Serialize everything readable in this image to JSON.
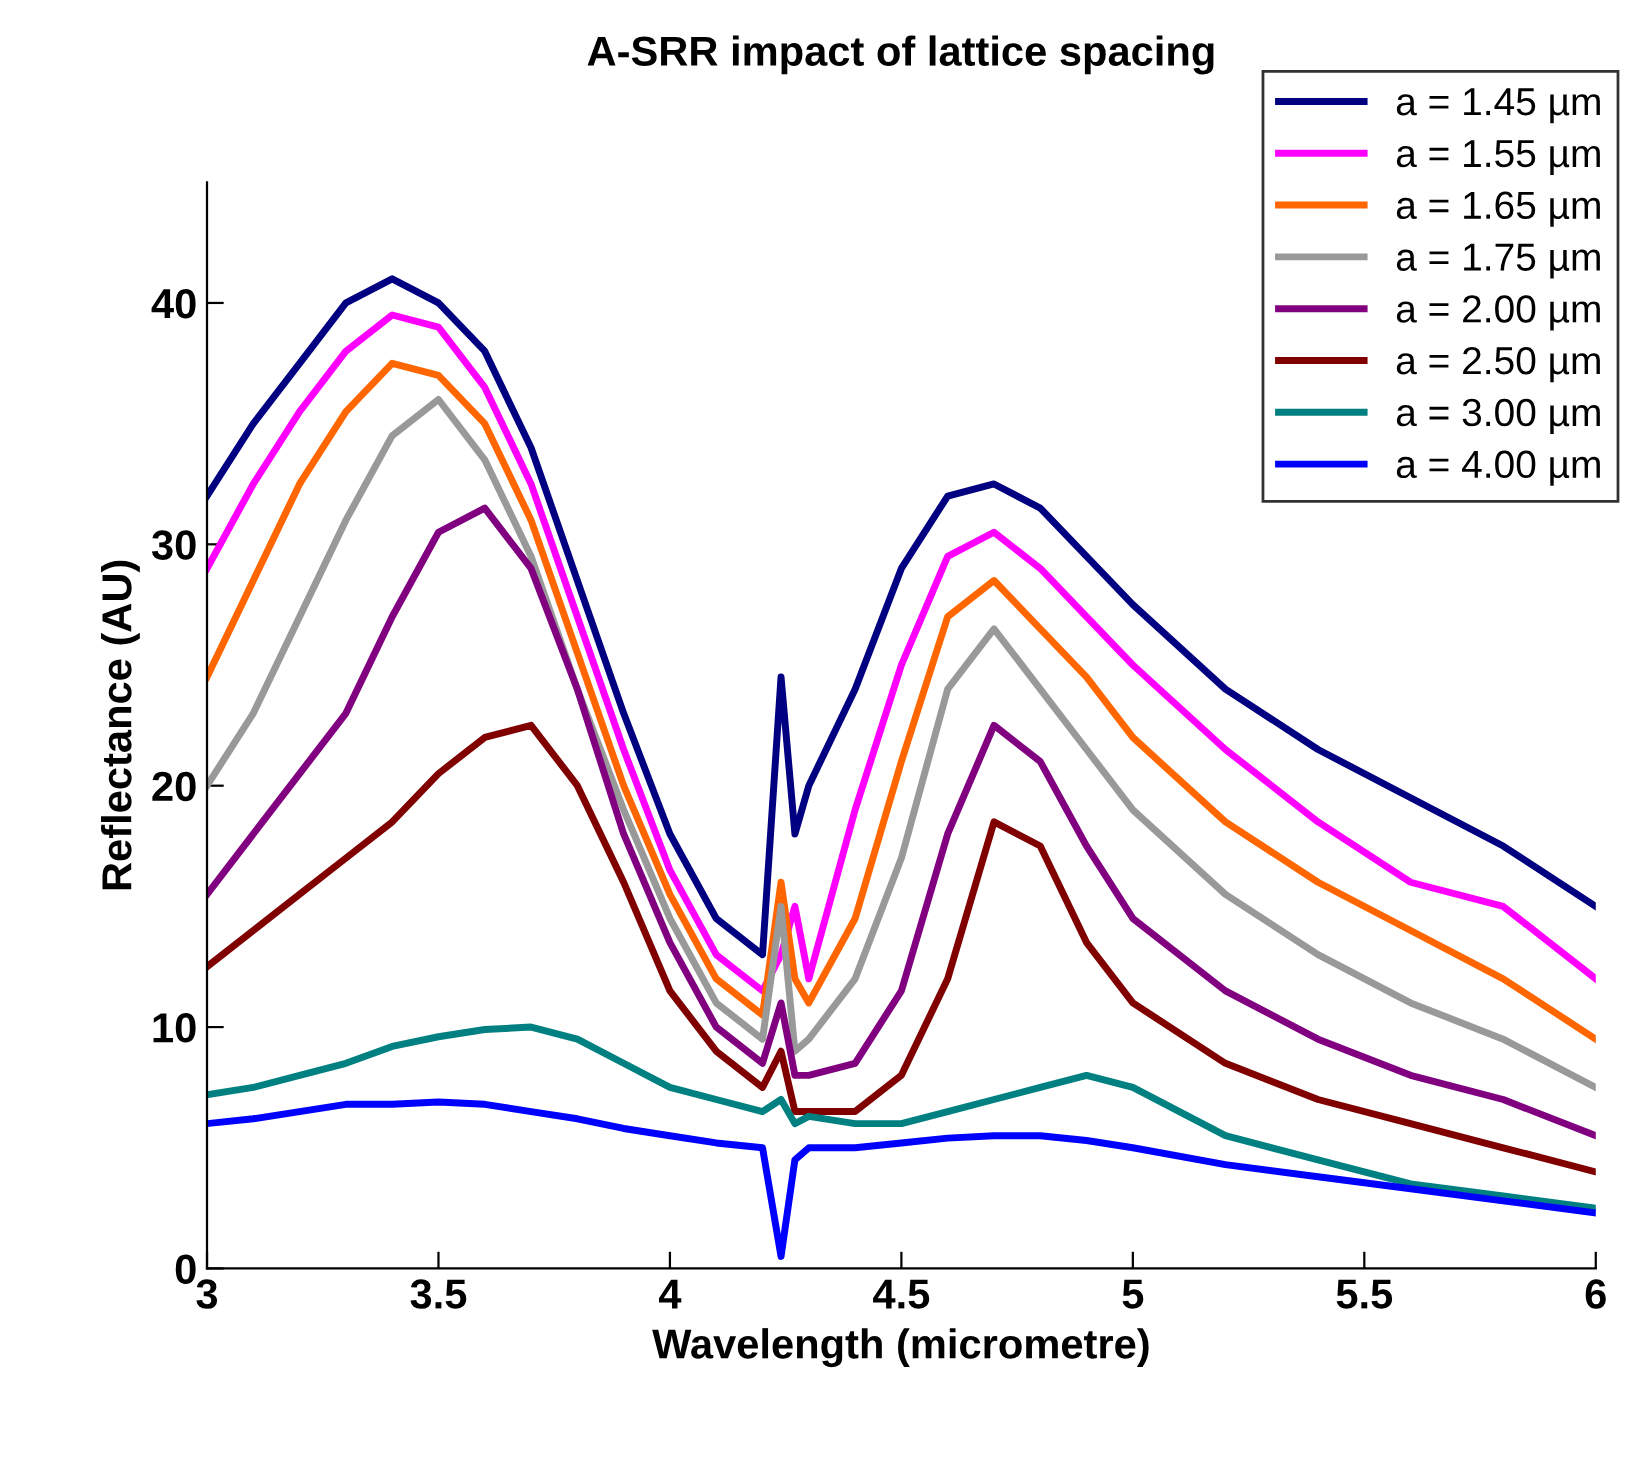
{
  "chart_data": {
    "type": "line",
    "title": "A-SRR impact of lattice spacing",
    "xlabel": "Wavelength (micrometre)",
    "ylabel": "Reflectance (AU)",
    "x": [
      3.0,
      3.1,
      3.2,
      3.3,
      3.4,
      3.5,
      3.6,
      3.7,
      3.8,
      3.9,
      4.0,
      4.1,
      4.2,
      4.24,
      4.27,
      4.3,
      4.4,
      4.5,
      4.6,
      4.7,
      4.8,
      4.9,
      5.0,
      5.2,
      5.4,
      5.6,
      5.8,
      6.0
    ],
    "series": [
      {
        "name": "a = 1.45 µm",
        "color": "#000080",
        "values": [
          32,
          35,
          37.5,
          40,
          41,
          40,
          38,
          34,
          28.5,
          23,
          18,
          14.5,
          13,
          24.5,
          18,
          20,
          24,
          29,
          32,
          32.5,
          31.5,
          29.5,
          27.5,
          24,
          21.5,
          19.5,
          17.5,
          15
        ]
      },
      {
        "name": "a = 1.55 µm",
        "color": "#ff00ff",
        "values": [
          29,
          32.5,
          35.5,
          38,
          39.5,
          39,
          36.5,
          32.5,
          27,
          21.5,
          16.5,
          13,
          11.5,
          13,
          15,
          12,
          19,
          25,
          29.5,
          30.5,
          29,
          27,
          25,
          21.5,
          18.5,
          16,
          15,
          12
        ]
      },
      {
        "name": "a = 1.65 µm",
        "color": "#ff6600",
        "values": [
          24.5,
          28.5,
          32.5,
          35.5,
          37.5,
          37,
          35,
          31,
          25.5,
          20,
          15.5,
          12,
          10.5,
          16,
          12,
          11,
          14.5,
          21,
          27,
          28.5,
          26.5,
          24.5,
          22,
          18.5,
          16,
          14,
          12,
          9.5
        ]
      },
      {
        "name": "a = 1.75 µm",
        "color": "#999999",
        "values": [
          20,
          23,
          27,
          31,
          34.5,
          36,
          33.5,
          29.5,
          24,
          19,
          14.5,
          11,
          9.5,
          15,
          9,
          9.5,
          12,
          17,
          24,
          26.5,
          24,
          21.5,
          19,
          15.5,
          13,
          11,
          9.5,
          7.5
        ]
      },
      {
        "name": "a = 2.00 µm",
        "color": "#800080",
        "values": [
          15.5,
          18,
          20.5,
          23,
          27,
          30.5,
          31.5,
          29,
          24,
          18,
          13.5,
          10,
          8.5,
          11,
          8,
          8,
          8.5,
          11.5,
          18,
          22.5,
          21,
          17.5,
          14.5,
          11.5,
          9.5,
          8,
          7,
          5.5
        ]
      },
      {
        "name": "a = 2.50 µm",
        "color": "#800000",
        "values": [
          12.5,
          14,
          15.5,
          17,
          18.5,
          20.5,
          22,
          22.5,
          20,
          16,
          11.5,
          9,
          7.5,
          9,
          6.5,
          6.5,
          6.5,
          8,
          12,
          18.5,
          17.5,
          13.5,
          11,
          8.5,
          7,
          6,
          5,
          4
        ]
      },
      {
        "name": "a = 3.00 µm",
        "color": "#008080",
        "values": [
          7.2,
          7.5,
          8,
          8.5,
          9.2,
          9.6,
          9.9,
          10,
          9.5,
          8.5,
          7.5,
          7,
          6.5,
          7,
          6,
          6.3,
          6,
          6,
          6.5,
          7,
          7.5,
          8,
          7.5,
          5.5,
          4.5,
          3.5,
          3,
          2.5
        ]
      },
      {
        "name": "a = 4.00 µm",
        "color": "#0000ff",
        "values": [
          6,
          6.2,
          6.5,
          6.8,
          6.8,
          6.9,
          6.8,
          6.5,
          6.2,
          5.8,
          5.5,
          5.2,
          5,
          0.5,
          4.5,
          5,
          5,
          5.2,
          5.4,
          5.5,
          5.5,
          5.3,
          5,
          4.3,
          3.8,
          3.3,
          2.8,
          2.3
        ]
      }
    ],
    "xlim": [
      3,
      6
    ],
    "xticks": [
      3,
      3.5,
      4,
      4.5,
      5,
      5.5,
      6
    ],
    "ylim": [
      0,
      45
    ],
    "yticks": [
      0,
      10,
      20,
      30,
      40
    ],
    "grid": false,
    "legend": "top right",
    "marker": "none",
    "line_style": "solid"
  }
}
